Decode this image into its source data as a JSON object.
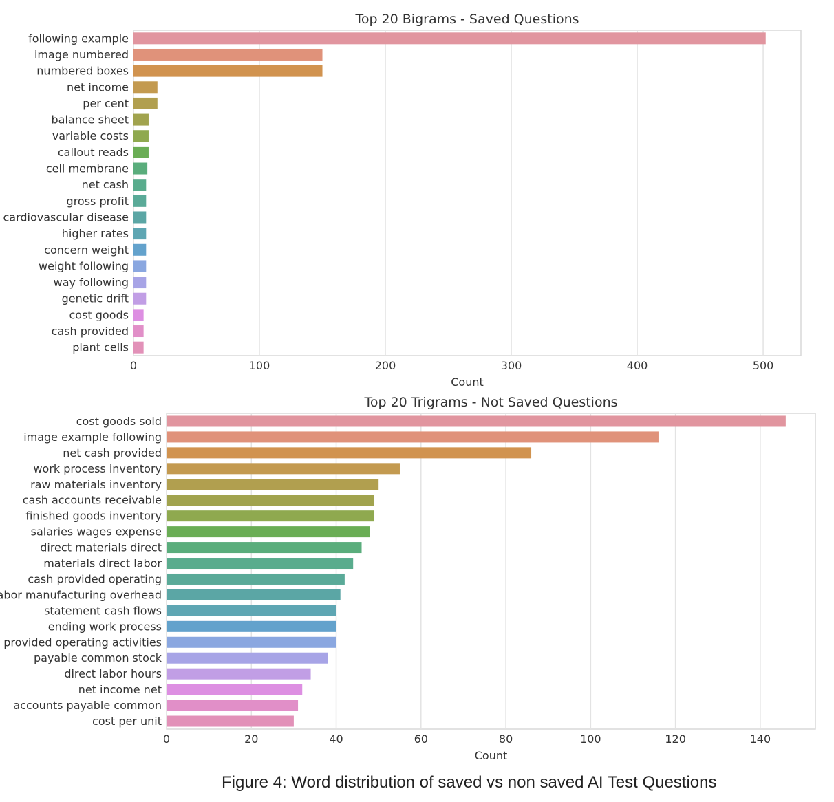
{
  "caption": "Figure 4: Word distribution of saved vs non saved AI Test Questions",
  "chart_data": [
    {
      "type": "bar",
      "orientation": "horizontal",
      "title": "Top 20 Bigrams - Saved Questions",
      "xlabel": "Count",
      "ylabel": "",
      "xlim": [
        0,
        530
      ],
      "xticks": [
        0,
        100,
        200,
        300,
        400,
        500
      ],
      "grid": true,
      "categories": [
        "following example",
        "image numbered",
        "numbered boxes",
        "net income",
        "per cent",
        "balance sheet",
        "variable costs",
        "callout reads",
        "cell membrane",
        "net cash",
        "gross profit",
        "cardiovascular disease",
        "higher rates",
        "concern weight",
        "weight following",
        "way following",
        "genetic drift",
        "cost goods",
        "cash provided",
        "plant cells"
      ],
      "values": [
        502,
        150,
        150,
        19,
        19,
        12,
        12,
        12,
        11,
        10,
        10,
        10,
        10,
        10,
        10,
        10,
        10,
        8,
        8,
        8
      ],
      "colors": [
        "#e1959f",
        "#e0927a",
        "#d1934f",
        "#c39a50",
        "#b19f4f",
        "#a1a34e",
        "#8fa94f",
        "#6aad55",
        "#5aad7c",
        "#59ac8d",
        "#5aaa98",
        "#5ba6a5",
        "#5ea6b3",
        "#63a2cc",
        "#8aa7e0",
        "#a7a4e6",
        "#c19ee5",
        "#dd8fe2",
        "#e18fc8",
        "#e291b8"
      ]
    },
    {
      "type": "bar",
      "orientation": "horizontal",
      "title": "Top 20 Trigrams - Not Saved Questions",
      "xlabel": "Count",
      "ylabel": "",
      "xlim": [
        0,
        153
      ],
      "xticks": [
        0,
        20,
        40,
        60,
        80,
        100,
        120,
        140
      ],
      "grid": true,
      "categories": [
        "cost goods sold",
        "image example following",
        "net cash provided",
        "work process inventory",
        "raw materials inventory",
        "cash accounts receivable",
        "finished goods inventory",
        "salaries wages expense",
        "direct materials direct",
        "materials direct labor",
        "cash provided operating",
        "labor manufacturing overhead",
        "statement cash flows",
        "ending work process",
        "provided operating activities",
        "payable common stock",
        "direct labor hours",
        "net income net",
        "accounts payable common",
        "cost per unit"
      ],
      "values": [
        146,
        116,
        86,
        55,
        50,
        49,
        49,
        48,
        46,
        44,
        42,
        41,
        40,
        40,
        40,
        38,
        34,
        32,
        31,
        30
      ],
      "colors": [
        "#e1959f",
        "#e0927a",
        "#d1934f",
        "#c39a50",
        "#b19f4f",
        "#a1a34e",
        "#8fa94f",
        "#6aad55",
        "#5aad7c",
        "#59ac8d",
        "#5aaa98",
        "#5ba6a5",
        "#5ea6b3",
        "#63a2cc",
        "#8aa7e0",
        "#a7a4e6",
        "#c19ee5",
        "#dd8fe2",
        "#e18fc8",
        "#e291b8"
      ]
    }
  ]
}
